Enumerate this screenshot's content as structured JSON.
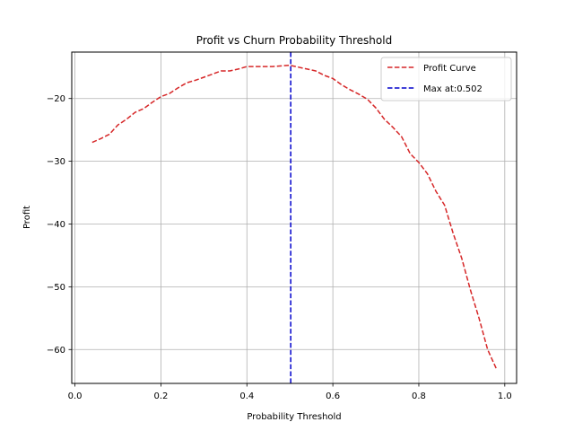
{
  "chart_data": {
    "type": "line",
    "title": "Profit vs Churn Probability Threshold",
    "xlabel": "Probability Threshold",
    "ylabel": "Profit",
    "xlim": [
      -0.0075,
      1.0275
    ],
    "ylim": [
      -65.4,
      -12.6
    ],
    "xticks": [
      0.0,
      0.2,
      0.4,
      0.6,
      0.8,
      1.0
    ],
    "xtick_labels": [
      "0.0",
      "0.2",
      "0.4",
      "0.6",
      "0.8",
      "1.0"
    ],
    "yticks": [
      -60,
      -50,
      -40,
      -30,
      -20
    ],
    "ytick_labels": [
      "−60",
      "−50",
      "−40",
      "−30",
      "−20"
    ],
    "grid": true,
    "legend_position": "top-right",
    "series": [
      {
        "name": "Profit Curve",
        "color": "#d62728",
        "style": "dashed",
        "x": [
          0.04,
          0.06,
          0.08,
          0.1,
          0.12,
          0.14,
          0.16,
          0.18,
          0.2,
          0.22,
          0.24,
          0.26,
          0.28,
          0.3,
          0.32,
          0.34,
          0.36,
          0.38,
          0.4,
          0.42,
          0.44,
          0.46,
          0.48,
          0.5,
          0.52,
          0.54,
          0.56,
          0.58,
          0.6,
          0.62,
          0.64,
          0.66,
          0.68,
          0.7,
          0.72,
          0.74,
          0.76,
          0.78,
          0.8,
          0.82,
          0.84,
          0.86,
          0.88,
          0.9,
          0.92,
          0.94,
          0.96,
          0.98
        ],
        "y": [
          -27.0,
          -26.4,
          -25.7,
          -24.2,
          -23.3,
          -22.2,
          -21.6,
          -20.6,
          -19.7,
          -19.2,
          -18.3,
          -17.5,
          -17.1,
          -16.6,
          -16.1,
          -15.6,
          -15.6,
          -15.3,
          -14.9,
          -14.9,
          -14.9,
          -14.9,
          -14.8,
          -14.7,
          -15.0,
          -15.3,
          -15.6,
          -16.3,
          -16.8,
          -17.8,
          -18.6,
          -19.3,
          -20.1,
          -21.5,
          -23.3,
          -24.6,
          -26.1,
          -28.8,
          -30.2,
          -32.0,
          -34.8,
          -37.0,
          -41.5,
          -45.5,
          -50.5,
          -55.0,
          -60.0,
          -63.0
        ]
      },
      {
        "name": "Max at:0.502",
        "color": "#0000cc",
        "style": "dashed",
        "vline_x": 0.502
      }
    ]
  }
}
